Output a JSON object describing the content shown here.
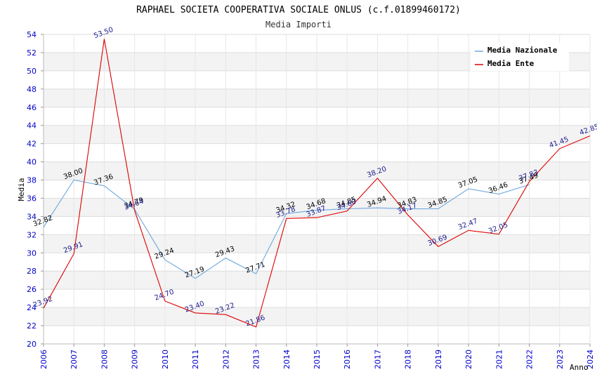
{
  "chart_data": {
    "type": "line",
    "title": "RAPHAEL SOCIETA COOPERATIVA SOCIALE ONLUS (c.f.01899460172)",
    "subtitle": "Media Importi",
    "xlabel": "Anno",
    "ylabel": "Media",
    "ylim": [
      20,
      54
    ],
    "ytick_step": 2,
    "x": [
      "2006",
      "2007",
      "2008",
      "2009",
      "2010",
      "2011",
      "2012",
      "2013",
      "2014",
      "2015",
      "2016",
      "2017",
      "2018",
      "2019",
      "2020",
      "2021",
      "2022",
      "2023",
      "2024"
    ],
    "legend_position": "top-right",
    "grid": true,
    "series": [
      {
        "name": "Media Nazionale",
        "color": "#6fa8dc",
        "values": [
          32.82,
          38.0,
          37.36,
          34.79,
          29.24,
          27.19,
          29.43,
          27.71,
          34.32,
          34.68,
          34.85,
          34.94,
          34.83,
          34.85,
          37.05,
          36.46,
          37.49,
          null,
          null
        ],
        "labels": [
          "32.82",
          "38.00",
          "37.36",
          "34.79",
          "29.24",
          "27.19",
          "29.43",
          "27.71",
          "34.32",
          "34.68",
          "34.85",
          "34.94",
          "34.83",
          "34.85",
          "37.05",
          "36.46",
          "37.49",
          "",
          ""
        ]
      },
      {
        "name": "Media Ente",
        "color": "#dd0000",
        "values": [
          23.92,
          29.91,
          53.5,
          34.64,
          24.7,
          23.4,
          23.22,
          21.86,
          33.78,
          33.87,
          34.6,
          38.2,
          34.17,
          30.69,
          32.47,
          32.05,
          37.83,
          41.45,
          42.85
        ],
        "labels": [
          "23.92",
          "29.91",
          "53.50",
          "34.64",
          "24.70",
          "23.40",
          "23.22",
          "21.86",
          "33.78",
          "33.87",
          "34.60",
          "38.20",
          "34.17",
          "30.69",
          "32.47",
          "32.05",
          "37.83",
          "41.45",
          "42.85"
        ]
      }
    ]
  }
}
